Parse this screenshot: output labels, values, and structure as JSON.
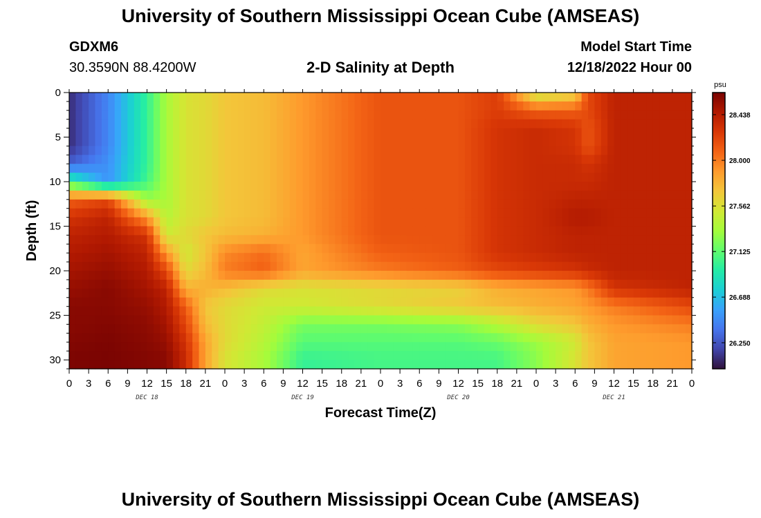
{
  "header": {
    "title": "University of Southern Mississippi Ocean Cube (AMSEAS)",
    "station_id": "GDXM6",
    "coordinates": "30.3590N  88.4200W",
    "plot_title": "2-D Salinity at Depth",
    "model_start_label": "Model Start Time",
    "model_start_value": "12/18/2022 Hour 00"
  },
  "footer": {
    "title": "University of Southern Mississippi Ocean Cube (AMSEAS)"
  },
  "colors": {
    "colormap": [
      "#30123b",
      "#4145ab",
      "#4675ed",
      "#39a2fc",
      "#1bcfd4",
      "#24eca6",
      "#61fc6c",
      "#a4fc3b",
      "#d1e834",
      "#f3c63a",
      "#fe9b2d",
      "#f36315",
      "#d93806",
      "#b11901",
      "#7a0402"
    ]
  },
  "chart_data": {
    "type": "heatmap",
    "title": "2-D Salinity at Depth",
    "xlabel": "Forecast Time(Z)",
    "ylabel": "Depth (ft)",
    "x_tick_labels": [
      "0",
      "3",
      "6",
      "9",
      "12",
      "15",
      "18",
      "21",
      "0",
      "3",
      "6",
      "9",
      "12",
      "15",
      "18",
      "21",
      "0",
      "3",
      "6",
      "9",
      "12",
      "15",
      "18",
      "21",
      "0",
      "3",
      "6",
      "9",
      "12",
      "15",
      "18",
      "21",
      "0"
    ],
    "x_range_hours": [
      0,
      96
    ],
    "day_labels": [
      {
        "label": "DEC 18",
        "hour": 12
      },
      {
        "label": "DEC 19",
        "hour": 36
      },
      {
        "label": "DEC 20",
        "hour": 60
      },
      {
        "label": "DEC 21",
        "hour": 84
      }
    ],
    "y_ticks": [
      "0",
      "5",
      "10",
      "15",
      "20",
      "25",
      "30"
    ],
    "y_range_ft": [
      0,
      31
    ],
    "colorbar": {
      "unit": "psu",
      "tick_labels": [
        "28.438",
        "28.000",
        "27.562",
        "27.125",
        "26.688",
        "26.250"
      ],
      "range": [
        26.0,
        28.65
      ]
    },
    "value_units": "psu",
    "depth_layers_ft": [
      0,
      2,
      4,
      6,
      8,
      10,
      12,
      14,
      16,
      18,
      20,
      22,
      24,
      26,
      28,
      30
    ],
    "time_hours": [
      0,
      6,
      12,
      15,
      18,
      21,
      24,
      30,
      36,
      48,
      60,
      66,
      72,
      78,
      80,
      84,
      96
    ],
    "salinity_grid": [
      [
        26.1,
        26.45,
        27.0,
        27.35,
        27.55,
        27.6,
        27.7,
        27.75,
        27.9,
        28.15,
        28.15,
        28.25,
        27.45,
        27.6,
        28.2,
        28.4,
        28.4
      ],
      [
        26.1,
        26.45,
        27.0,
        27.35,
        27.55,
        27.6,
        27.7,
        27.75,
        27.9,
        28.15,
        28.15,
        28.25,
        28.1,
        28.1,
        28.2,
        28.4,
        28.4
      ],
      [
        26.1,
        26.45,
        27.0,
        27.35,
        27.55,
        27.6,
        27.7,
        27.75,
        27.9,
        28.15,
        28.15,
        28.3,
        28.35,
        28.3,
        28.15,
        28.4,
        28.4
      ],
      [
        26.1,
        26.45,
        27.0,
        27.35,
        27.55,
        27.6,
        27.7,
        27.75,
        27.9,
        28.15,
        28.15,
        28.3,
        28.35,
        28.3,
        28.15,
        28.4,
        28.4
      ],
      [
        26.3,
        26.5,
        27.0,
        27.35,
        27.55,
        27.6,
        27.7,
        27.75,
        27.9,
        28.15,
        28.15,
        28.3,
        28.35,
        28.35,
        28.3,
        28.4,
        28.4
      ],
      [
        27.0,
        26.5,
        27.05,
        27.35,
        27.55,
        27.6,
        27.7,
        27.75,
        27.9,
        28.15,
        28.15,
        28.3,
        28.35,
        28.35,
        28.35,
        28.4,
        28.4
      ],
      [
        28.1,
        28.2,
        27.3,
        27.35,
        27.55,
        27.6,
        27.7,
        27.75,
        27.9,
        28.15,
        28.15,
        28.3,
        28.35,
        28.4,
        28.4,
        28.4,
        28.4
      ],
      [
        28.3,
        28.4,
        27.9,
        27.4,
        27.55,
        27.6,
        27.7,
        27.75,
        27.9,
        28.15,
        28.15,
        28.3,
        28.35,
        28.45,
        28.45,
        28.4,
        28.4
      ],
      [
        28.4,
        28.45,
        28.3,
        27.5,
        27.6,
        27.7,
        27.75,
        27.8,
        27.9,
        28.15,
        28.15,
        28.3,
        28.35,
        28.4,
        28.4,
        28.4,
        28.4
      ],
      [
        28.45,
        28.5,
        28.4,
        27.9,
        27.5,
        27.7,
        27.95,
        28.05,
        27.85,
        28.1,
        28.15,
        28.3,
        28.35,
        28.4,
        28.4,
        28.4,
        28.4
      ],
      [
        28.5,
        28.55,
        28.45,
        28.2,
        27.6,
        27.75,
        28.0,
        28.1,
        27.85,
        28.0,
        28.1,
        28.2,
        28.25,
        28.3,
        28.35,
        28.4,
        28.4
      ],
      [
        28.55,
        28.6,
        28.5,
        28.4,
        27.8,
        27.8,
        27.75,
        27.6,
        27.55,
        27.6,
        27.65,
        27.8,
        27.85,
        27.9,
        28.0,
        28.3,
        28.4
      ],
      [
        28.6,
        28.6,
        28.55,
        28.45,
        28.1,
        27.7,
        27.6,
        27.5,
        27.5,
        27.6,
        27.7,
        27.75,
        27.8,
        27.85,
        27.9,
        28.0,
        28.2
      ],
      [
        28.6,
        28.62,
        28.58,
        28.5,
        28.2,
        27.75,
        27.6,
        27.45,
        27.2,
        27.2,
        27.25,
        27.4,
        27.6,
        27.7,
        27.8,
        27.9,
        28.0
      ],
      [
        28.62,
        28.64,
        28.6,
        28.55,
        28.3,
        27.85,
        27.6,
        27.4,
        27.1,
        27.1,
        27.1,
        27.15,
        27.3,
        27.5,
        27.7,
        27.85,
        27.9
      ],
      [
        28.64,
        28.65,
        28.62,
        28.6,
        28.35,
        27.85,
        27.55,
        27.35,
        27.0,
        27.05,
        27.05,
        27.05,
        27.25,
        27.55,
        27.7,
        27.85,
        27.9
      ]
    ]
  }
}
